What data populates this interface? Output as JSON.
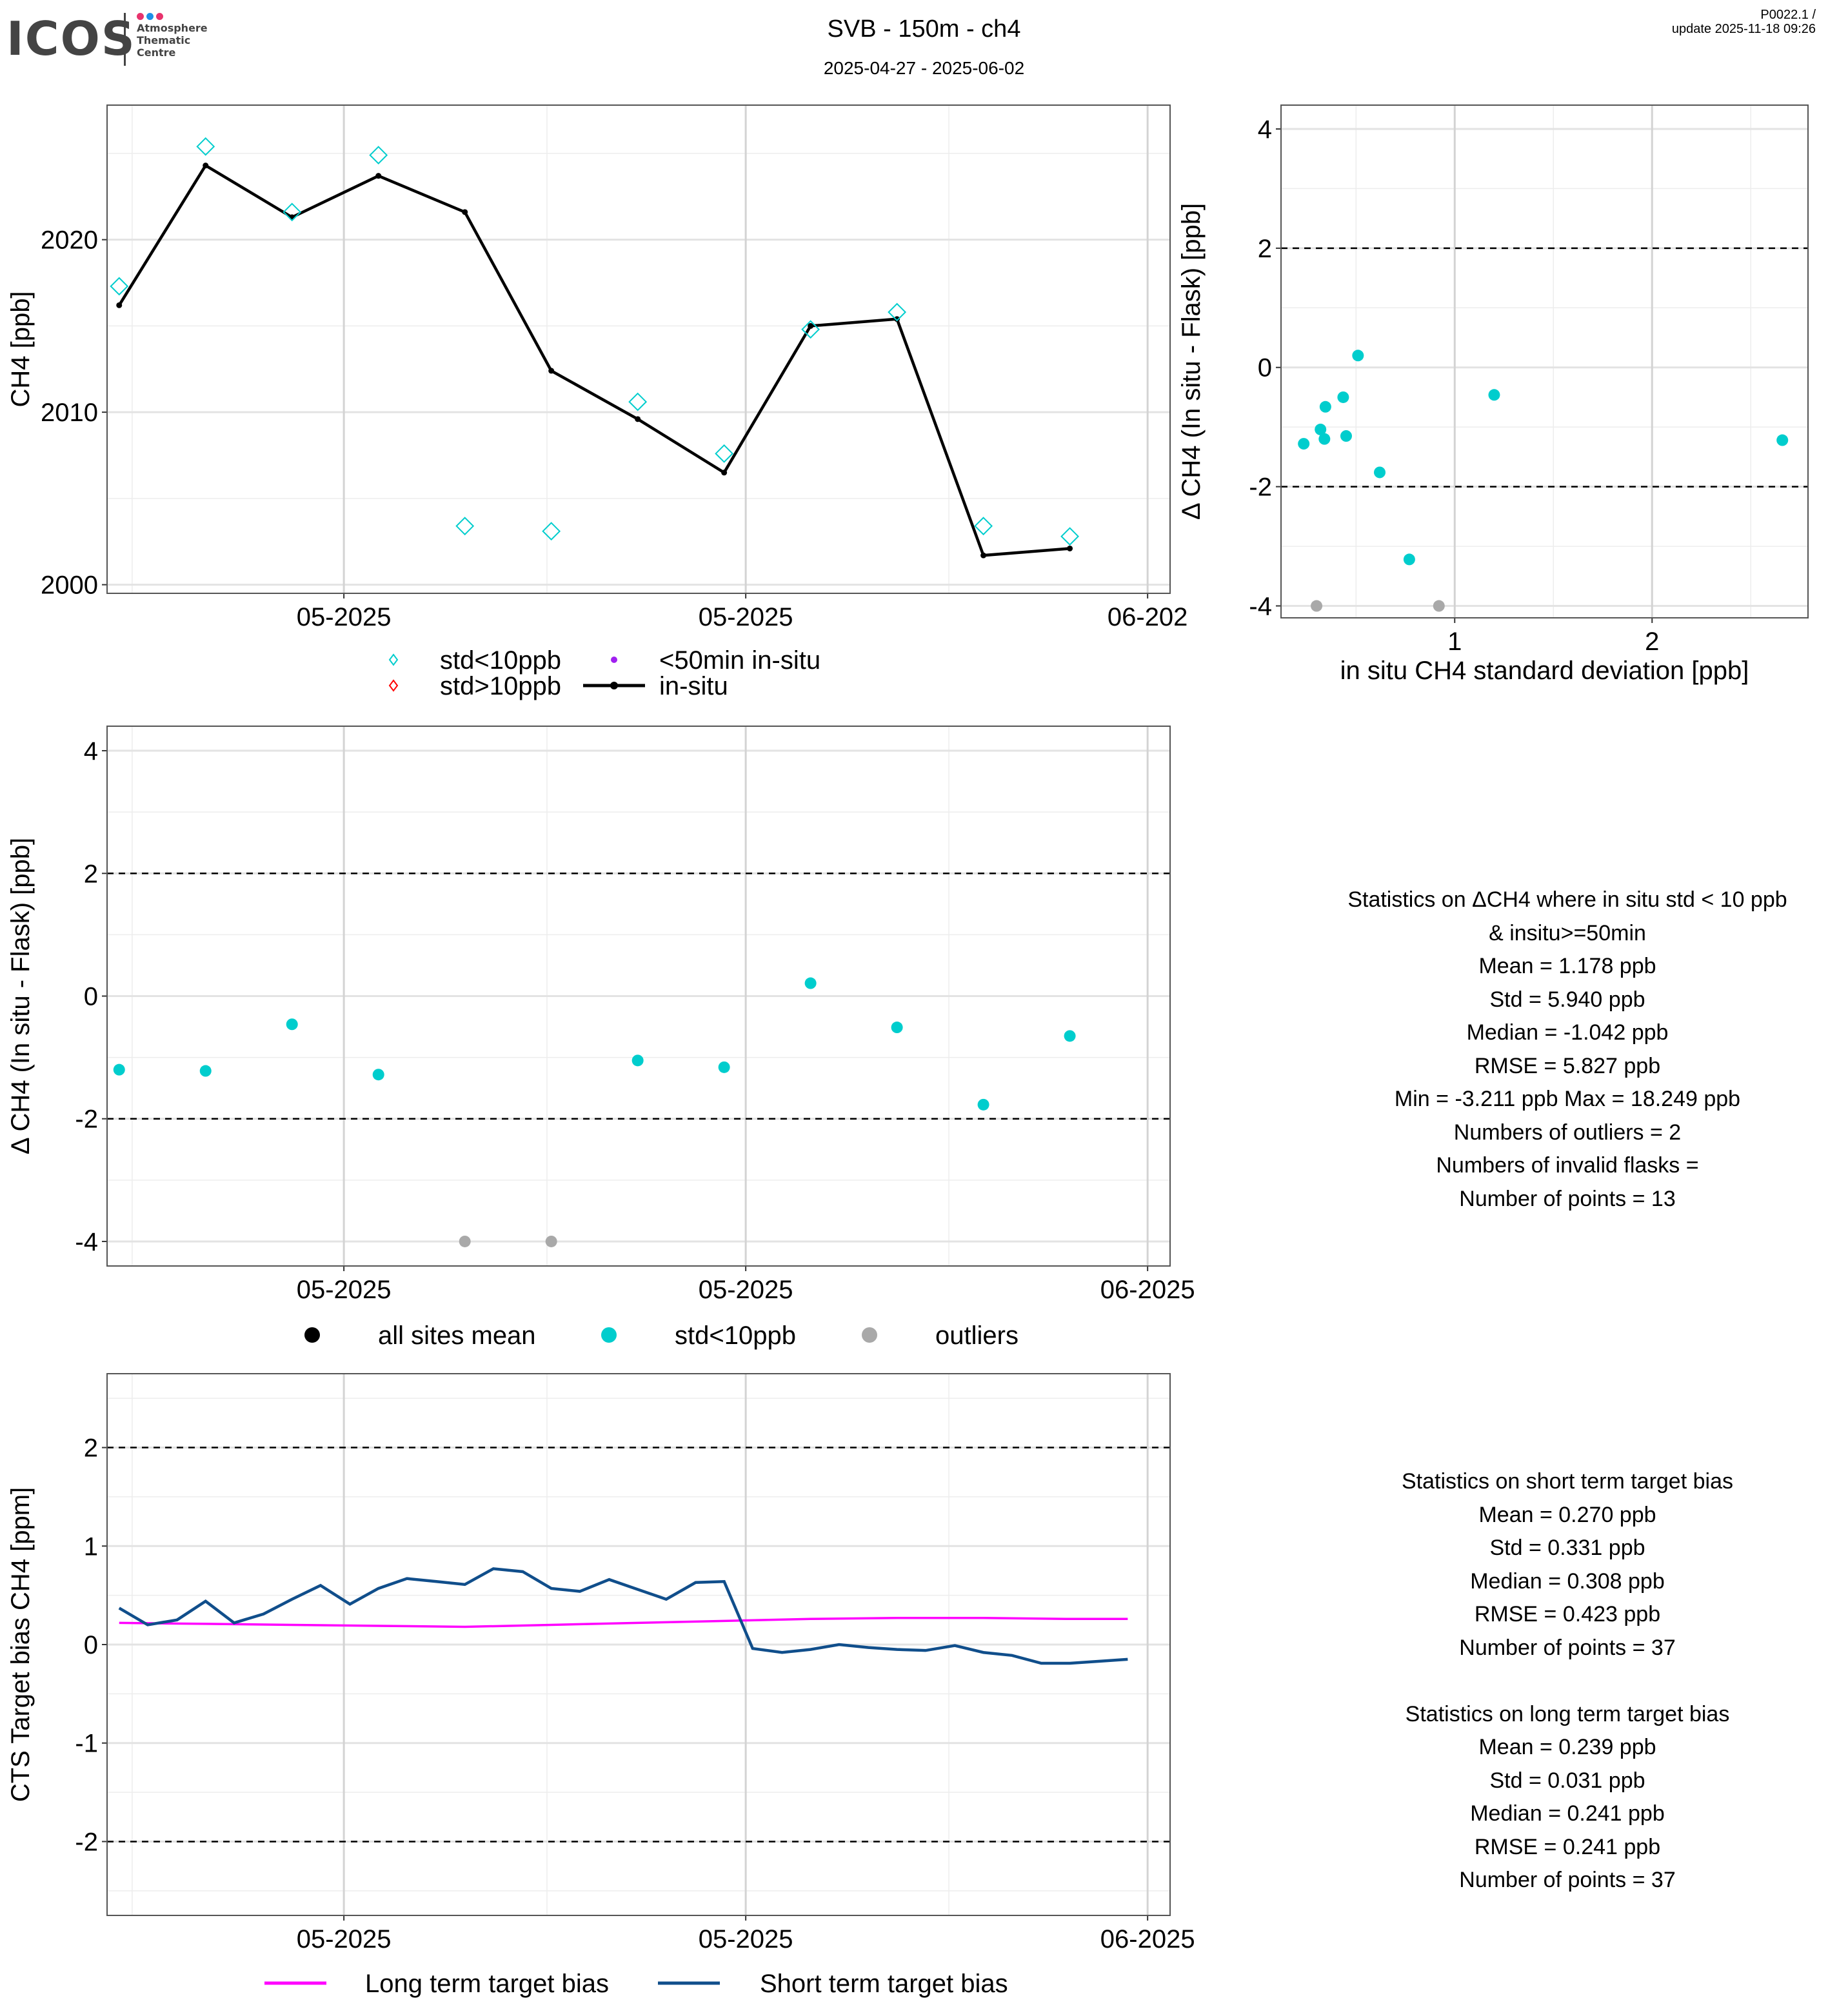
{
  "header": {
    "logo_text": "ICOS",
    "logo_subtitle": [
      "Atmosphere",
      "Thematic",
      "Centre"
    ],
    "logo_dot_colors": [
      "#e8336d",
      "#1e90e8",
      "#e8336d"
    ],
    "title": "SVB - 150m - ch4",
    "date_range": "2025-04-27 - 2025-06-02",
    "version_line1": "P0022.1 /",
    "version_line2": "update  2025-11-18 09:26"
  },
  "colors": {
    "flask_ok": "#00CDCD",
    "flask_bad": "#FF0000",
    "short_insitu": "#A020F0",
    "insitu": "#000000",
    "outlier": "#A9A9A9",
    "long_term": "#FF00FF",
    "short_term": "#104E8B"
  },
  "stats_delta": {
    "lines": [
      "Statistics on ΔCH4 where in situ std < 10 ppb",
      "& insitu>=50min",
      "Mean =  1.178 ppb",
      "Std =  5.940 ppb",
      "Median =  -1.042 ppb",
      "RMSE =  5.827 ppb",
      "Min =  -3.211 ppb Max =  18.249 ppb",
      "Numbers of outliers =  2",
      "Numbers of invalid flasks =",
      "Number of points =  13"
    ]
  },
  "stats_target": {
    "lines": [
      "Statistics on short term target bias",
      "Mean =  0.270 ppb",
      "Std =  0.331 ppb",
      "Median =  0.308 ppb",
      "RMSE =  0.423 ppb",
      "Number of points =  37",
      "",
      "Statistics on long term target bias",
      "Mean =  0.239 ppb",
      "Std =  0.031 ppb",
      "Median =  0.241 ppb",
      "RMSE =  0.241 ppb",
      "Number of points =  37"
    ]
  },
  "chart_data": [
    {
      "id": "ch4_timeseries",
      "type": "line",
      "title": "",
      "xlabel": "",
      "ylabel": "CH4 [ppb]",
      "x_index_range": [
        0,
        12.3
      ],
      "x_ticks": [
        {
          "pos": 2.6,
          "label": "05-2025"
        },
        {
          "pos": 7.25,
          "label": "05-2025"
        },
        {
          "pos": 11.9,
          "label": "06-202"
        }
      ],
      "x_minor": [
        0.15,
        4.95,
        9.6
      ],
      "ylim": [
        1999.5,
        2027.8
      ],
      "y_ticks": [
        2000,
        2010,
        2020
      ],
      "y_minor": [
        2005,
        2015,
        2025
      ],
      "grid": true,
      "series": [
        {
          "name": "in-situ",
          "style": "line+point",
          "x": [
            0,
            1,
            2,
            3,
            4,
            5,
            6,
            7,
            8,
            9,
            10,
            11
          ],
          "values": [
            2016.2,
            2024.3,
            2021.3,
            2023.7,
            2021.6,
            2012.4,
            2009.6,
            2006.5,
            2015.0,
            2015.4,
            2001.7,
            2002.1
          ]
        },
        {
          "name": "std<10ppb",
          "style": "diamond",
          "x": [
            0,
            1,
            2,
            3,
            4,
            5,
            6,
            7,
            8,
            9,
            10,
            11
          ],
          "values": [
            2017.3,
            2025.4,
            2021.6,
            2024.9,
            2003.4,
            2003.1,
            2010.6,
            2007.6,
            2014.8,
            2015.8,
            2003.4,
            2002.8
          ]
        }
      ],
      "legend": {
        "position": "bottom",
        "items": [
          {
            "label": "std<10ppb",
            "symbol": "diamond",
            "color": "#00CDCD"
          },
          {
            "label": "<50min in-situ",
            "symbol": "dot",
            "color": "#A020F0"
          },
          {
            "label": "std>10ppb",
            "symbol": "diamond",
            "color": "#FF0000"
          },
          {
            "label": "in-situ",
            "symbol": "line-point",
            "color": "#000000"
          }
        ]
      }
    },
    {
      "id": "delta_vs_std",
      "type": "scatter",
      "xlabel": "in situ CH4 standard deviation [ppb]",
      "ylabel": "Δ CH4 (In situ - Flask) [ppb]",
      "xlim": [
        0.12,
        2.79
      ],
      "ylim": [
        -4.2,
        4.4
      ],
      "x_ticks": [
        1,
        2
      ],
      "x_minor": [
        0.5,
        1.5,
        2.5
      ],
      "y_ticks": [
        -4,
        -2,
        0,
        2,
        4
      ],
      "y_minor": [
        -3,
        -1,
        1,
        3
      ],
      "hlines": [
        2,
        -2
      ],
      "grid": true,
      "series": [
        {
          "name": "std<10ppb",
          "color": "#00CDCD",
          "x": [
            0.235,
            0.32,
            0.34,
            0.345,
            0.435,
            0.45,
            0.51,
            0.62,
            0.77,
            1.2,
            2.66
          ],
          "y": [
            -1.28,
            -1.04,
            -1.2,
            -0.66,
            -0.5,
            -1.15,
            0.2,
            -1.76,
            -3.22,
            -0.46,
            -1.22
          ]
        },
        {
          "name": "outliers",
          "color": "#A9A9A9",
          "x": [
            0.3,
            0.92
          ],
          "y": [
            -4.0,
            -4.0
          ]
        }
      ]
    },
    {
      "id": "delta_timeseries",
      "type": "scatter",
      "xlabel": "",
      "ylabel": "Δ CH4 (In situ - Flask) [ppb]",
      "x_index_range": [
        0,
        12.3
      ],
      "x_ticks": [
        {
          "pos": 2.6,
          "label": "05-2025"
        },
        {
          "pos": 7.25,
          "label": "05-2025"
        },
        {
          "pos": 11.9,
          "label": "06-2025"
        }
      ],
      "x_minor": [
        0.15,
        4.95,
        9.6
      ],
      "ylim": [
        -4.4,
        4.4
      ],
      "y_ticks": [
        -4,
        -2,
        0,
        2,
        4
      ],
      "y_minor": [
        -3,
        -1,
        1,
        3
      ],
      "hlines": [
        2,
        -2
      ],
      "grid": true,
      "series": [
        {
          "name": "std<10ppb",
          "color": "#00CDCD",
          "x": [
            0,
            1,
            2,
            3,
            6,
            7,
            8,
            9,
            10,
            11
          ],
          "y": [
            -1.2,
            -1.22,
            -0.46,
            -1.28,
            -1.05,
            -1.16,
            0.21,
            -0.51,
            -1.77,
            -0.65
          ]
        },
        {
          "name": "outliers",
          "color": "#A9A9A9",
          "x": [
            4,
            5
          ],
          "y": [
            -4.0,
            -4.0
          ]
        }
      ],
      "legend": {
        "position": "bottom",
        "items": [
          {
            "label": "all sites mean",
            "color": "#000000"
          },
          {
            "label": "std<10ppb",
            "color": "#00CDCD"
          },
          {
            "label": "outliers",
            "color": "#A9A9A9"
          }
        ]
      }
    },
    {
      "id": "target_bias",
      "type": "line",
      "xlabel": "",
      "ylabel": "CTS Target bias CH4 [ppm]",
      "x_index_range": [
        0,
        12.3
      ],
      "x_ticks": [
        {
          "pos": 2.6,
          "label": "05-2025"
        },
        {
          "pos": 7.25,
          "label": "05-2025"
        },
        {
          "pos": 11.9,
          "label": "06-2025"
        }
      ],
      "x_minor": [
        0.15,
        4.95,
        9.6
      ],
      "ylim": [
        -2.75,
        2.75
      ],
      "y_ticks": [
        -2,
        -1,
        0,
        1,
        2
      ],
      "y_minor": [
        -2.5,
        -1.5,
        -0.5,
        0.5,
        1.5,
        2.5
      ],
      "hlines": [
        2,
        -2
      ],
      "grid": true,
      "series": [
        {
          "name": "Short term target bias",
          "color": "#104E8B",
          "x": [
            0,
            0.33,
            0.67,
            1,
            1.33,
            1.67,
            2,
            2.33,
            2.67,
            3,
            3.33,
            3.67,
            4,
            4.33,
            4.67,
            5,
            5.33,
            5.67,
            6,
            6.33,
            6.67,
            7,
            7.33,
            7.67,
            8,
            8.33,
            8.67,
            9,
            9.33,
            9.67,
            10,
            10.33,
            10.67,
            11,
            11.33,
            11.67
          ],
          "values": [
            0.37,
            0.2,
            0.25,
            0.44,
            0.22,
            0.31,
            0.46,
            0.6,
            0.41,
            0.57,
            0.67,
            0.64,
            0.61,
            0.77,
            0.74,
            0.57,
            0.54,
            0.66,
            0.56,
            0.46,
            0.63,
            0.64,
            -0.04,
            -0.08,
            -0.05,
            0.0,
            -0.03,
            -0.05,
            -0.06,
            -0.01,
            -0.08,
            -0.11,
            -0.19,
            -0.19,
            -0.17,
            -0.15
          ]
        },
        {
          "name": "Long term target bias",
          "color": "#FF00FF",
          "x": [
            0,
            1,
            2,
            3,
            4,
            5,
            6,
            7,
            8,
            9,
            10,
            11,
            11.67
          ],
          "values": [
            0.22,
            0.21,
            0.2,
            0.19,
            0.18,
            0.2,
            0.22,
            0.24,
            0.26,
            0.27,
            0.27,
            0.26,
            0.26
          ]
        }
      ],
      "legend": {
        "position": "bottom",
        "items": [
          {
            "label": "Long term target bias",
            "color": "#FF00FF"
          },
          {
            "label": "Short term target bias",
            "color": "#104E8B"
          }
        ]
      }
    }
  ]
}
